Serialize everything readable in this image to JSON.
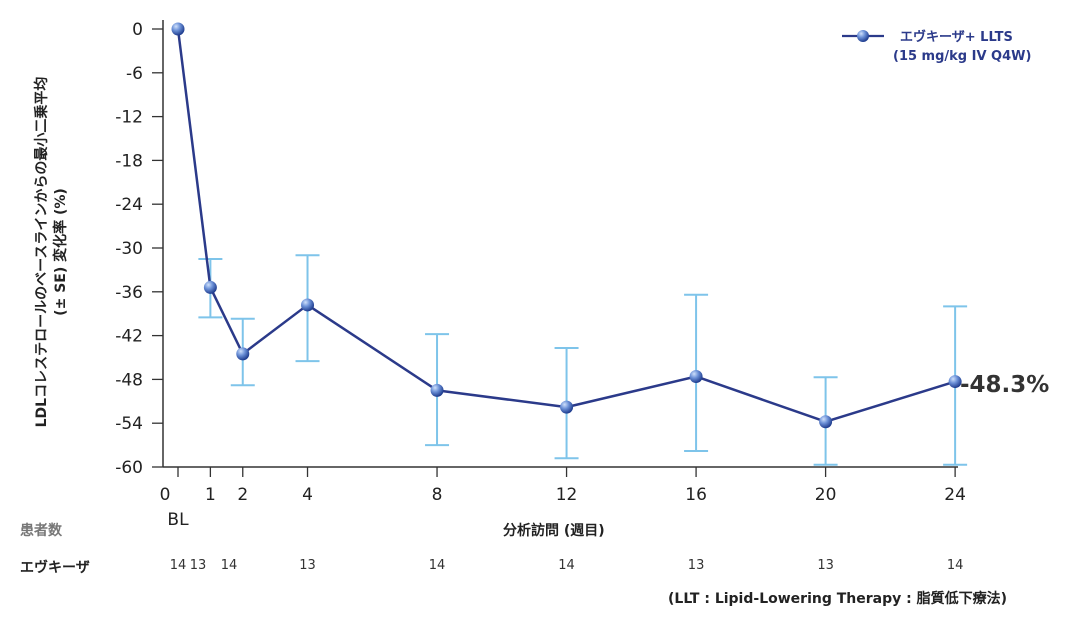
{
  "chart_data": {
    "type": "line",
    "x_tick_labels": [
      "0",
      "1",
      "2",
      "4",
      "8",
      "12",
      "16",
      "20",
      "24"
    ],
    "baseline_label": "BL",
    "xlabel": "分析訪問 (週目)",
    "ylabel_line1": "LDLコレステロールのベースラインからの最小二乗平均",
    "ylabel_line2": "(± SE) 変化率 (%)",
    "ylim": [
      -60,
      0
    ],
    "y_ticks": [
      0,
      -6,
      -12,
      -18,
      -24,
      -30,
      -36,
      -42,
      -48,
      -54,
      -60
    ],
    "series": [
      {
        "name": "エヴキーザ+ LLTS",
        "name_line2": "(15 mg/kg IV Q4W)",
        "color": "#2b3a8a",
        "x": [
          0,
          1,
          2,
          4,
          8,
          12,
          16,
          20,
          24
        ],
        "y": [
          0,
          -35.4,
          -44.5,
          -37.8,
          -49.5,
          -51.8,
          -47.6,
          -53.8,
          -48.3
        ],
        "error_low": [
          null,
          -39.5,
          -48.8,
          -45.5,
          -57.0,
          -58.8,
          -57.8,
          -59.7,
          -59.7
        ],
        "error_high": [
          null,
          -31.5,
          -39.7,
          -31.0,
          -41.8,
          -43.7,
          -36.4,
          -47.7,
          -38.0
        ]
      }
    ],
    "annotation": "-48.3%",
    "legend_position": "top-right",
    "grid": false
  },
  "patients": {
    "header": "患者数",
    "row_label": "エヴキーザ",
    "x": [
      0,
      1,
      2,
      4,
      8,
      12,
      16,
      20,
      24
    ],
    "counts": [
      "14",
      "13",
      "14",
      "13",
      "14",
      "14",
      "13",
      "13",
      "14"
    ]
  },
  "footnote": "(LLT : Lipid-Lowering Therapy : 脂質低下療法)",
  "colors": {
    "line": "#2b3a8a",
    "error": "#7ec4ea",
    "marker_light": "#9fc0ee",
    "marker_dark": "#2c4ea8"
  }
}
